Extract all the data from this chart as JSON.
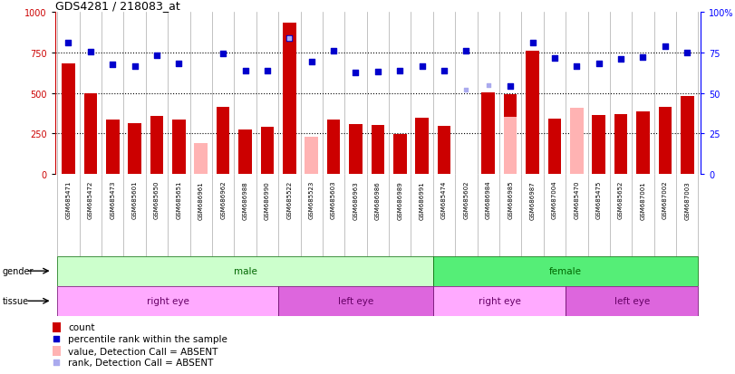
{
  "title": "GDS4281 / 218083_at",
  "samples": [
    "GSM685471",
    "GSM685472",
    "GSM685473",
    "GSM685601",
    "GSM685650",
    "GSM685651",
    "GSM686961",
    "GSM686962",
    "GSM686988",
    "GSM686990",
    "GSM685522",
    "GSM685523",
    "GSM685603",
    "GSM686963",
    "GSM686986",
    "GSM686989",
    "GSM686991",
    "GSM685474",
    "GSM685602",
    "GSM686984",
    "GSM686985",
    "GSM686987",
    "GSM687004",
    "GSM685470",
    "GSM685475",
    "GSM685652",
    "GSM687001",
    "GSM687002",
    "GSM687003"
  ],
  "count_values": [
    680,
    500,
    335,
    310,
    355,
    335,
    null,
    415,
    275,
    290,
    935,
    null,
    335,
    305,
    300,
    245,
    345,
    295,
    null,
    505,
    490,
    760,
    340,
    null,
    360,
    370,
    385,
    415,
    480
  ],
  "absent_value_values": [
    null,
    null,
    null,
    null,
    null,
    null,
    190,
    null,
    null,
    null,
    null,
    225,
    null,
    null,
    null,
    null,
    null,
    null,
    null,
    null,
    350,
    null,
    null,
    405,
    null,
    null,
    null,
    null,
    null
  ],
  "percentile_values": [
    810,
    755,
    675,
    665,
    735,
    685,
    null,
    745,
    635,
    640,
    840,
    695,
    760,
    625,
    630,
    640,
    665,
    635,
    760,
    null,
    540,
    810,
    715,
    665,
    680,
    710,
    720,
    790,
    750
  ],
  "absent_rank_values": [
    null,
    null,
    null,
    null,
    null,
    null,
    null,
    null,
    null,
    null,
    840,
    null,
    null,
    null,
    null,
    null,
    null,
    null,
    520,
    550,
    null,
    null,
    null,
    null,
    null,
    null,
    null,
    null,
    null
  ],
  "gender": [
    "male",
    "male",
    "male",
    "male",
    "male",
    "male",
    "male",
    "male",
    "male",
    "male",
    "male",
    "male",
    "male",
    "male",
    "male",
    "male",
    "male",
    "female",
    "female",
    "female",
    "female",
    "female",
    "female",
    "female",
    "female",
    "female",
    "female",
    "female",
    "female"
  ],
  "tissue": [
    "right eye",
    "right eye",
    "right eye",
    "right eye",
    "right eye",
    "right eye",
    "right eye",
    "right eye",
    "right eye",
    "right eye",
    "left eye",
    "left eye",
    "left eye",
    "left eye",
    "left eye",
    "left eye",
    "left eye",
    "right eye",
    "right eye",
    "right eye",
    "right eye",
    "right eye",
    "right eye",
    "left eye",
    "left eye",
    "left eye",
    "left eye",
    "left eye",
    "left eye"
  ],
  "bar_color_red": "#cc0000",
  "bar_color_absent": "#ffb3b3",
  "dot_color_blue": "#0000cc",
  "dot_color_absent_rank": "#aaaaee",
  "bg_color": "#ffffff",
  "male_color_light": "#aaffaa",
  "male_color": "#66ee66",
  "female_color": "#33cc55",
  "right_eye_color": "#ffaaff",
  "left_eye_color": "#dd66dd",
  "xtick_bg": "#dddddd",
  "xtick_divider": "#aaaaaa"
}
